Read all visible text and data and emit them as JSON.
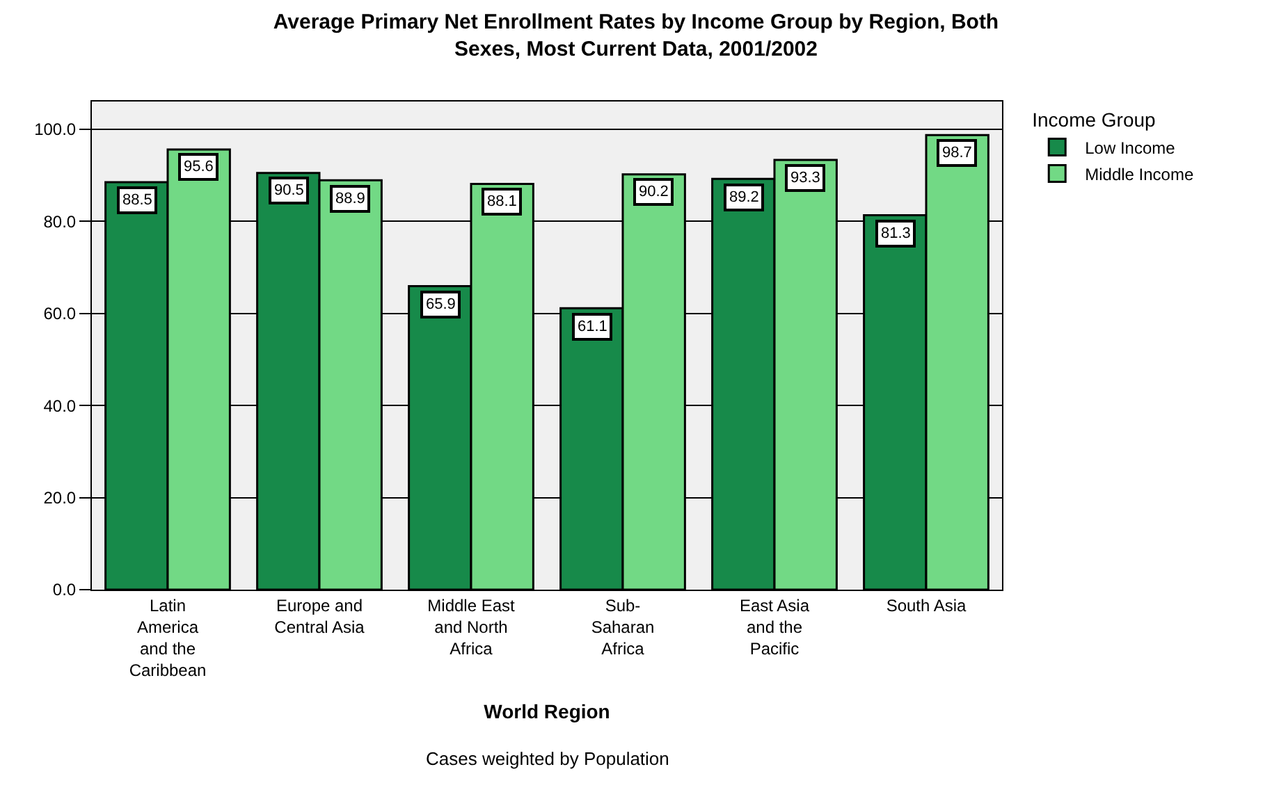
{
  "chart_data": {
    "type": "bar",
    "title": "Average Primary Net Enrollment Rates by Income Group by Region, Both\nSexes, Most Current Data, 2001/2002",
    "xlabel": "World Region",
    "categories": [
      "Latin\nAmerica\nand the\nCaribbean",
      "Europe and\nCentral Asia",
      "Middle East\nand North\nAfrica",
      "Sub-\nSaharan\nAfrica",
      "East Asia\nand the\nPacific",
      "South Asia"
    ],
    "series": [
      {
        "name": "Low Income",
        "color": "#178a4a",
        "values": [
          88.5,
          90.5,
          65.9,
          61.1,
          89.2,
          81.3
        ]
      },
      {
        "name": "Middle Income",
        "color": "#72d985",
        "values": [
          95.6,
          88.9,
          88.1,
          90.2,
          93.3,
          98.7
        ]
      }
    ],
    "legend_title": "Income Group",
    "legend": "right",
    "data_labels": true,
    "grid": "y",
    "ylim": [
      0,
      106
    ],
    "yticks": [
      {
        "value": 0,
        "label": "0.0"
      },
      {
        "value": 20,
        "label": "20.0"
      },
      {
        "value": 40,
        "label": "40.0"
      },
      {
        "value": 60,
        "label": "60.0"
      },
      {
        "value": 80,
        "label": "80.0"
      },
      {
        "value": 100,
        "label": "100.0"
      }
    ],
    "annotations": [
      "Cases weighted by Population"
    ]
  }
}
